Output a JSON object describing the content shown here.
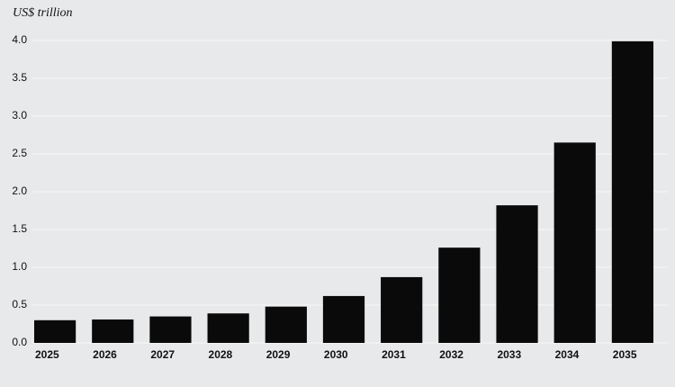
{
  "chart_data": {
    "type": "bar",
    "ylabel": "US$ trillion",
    "categories": [
      "2025",
      "2026",
      "2027",
      "2028",
      "2029",
      "2030",
      "2031",
      "2032",
      "2033",
      "2034",
      "2035"
    ],
    "values": [
      0.3,
      0.31,
      0.35,
      0.39,
      0.48,
      0.62,
      0.87,
      1.26,
      1.82,
      2.65,
      3.99
    ],
    "color": "#0a0a0a",
    "ylim": [
      0,
      4
    ],
    "yticks": [
      {
        "value": 0,
        "label": "0.0"
      },
      {
        "value": 0.5,
        "label": "0.5"
      },
      {
        "value": 1,
        "label": "1.0"
      },
      {
        "value": 1.5,
        "label": "1.5"
      },
      {
        "value": 2,
        "label": "2.0"
      },
      {
        "value": 2.5,
        "label": "2.5"
      },
      {
        "value": 3,
        "label": "3.0"
      },
      {
        "value": 3.5,
        "label": "3.5"
      },
      {
        "value": 4,
        "label": "4.0"
      }
    ],
    "grid": true
  }
}
